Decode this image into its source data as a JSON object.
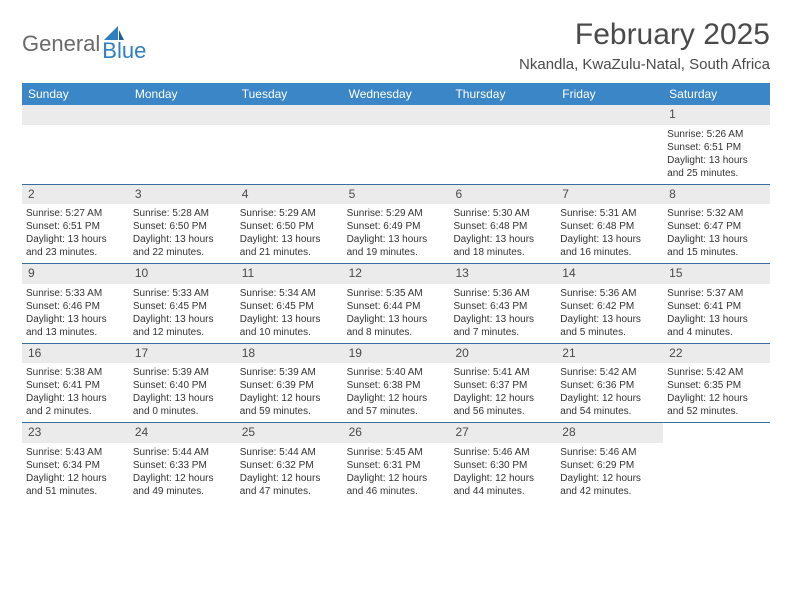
{
  "logo": {
    "word1": "General",
    "word2": "Blue"
  },
  "title": "February 2025",
  "location": "Nkandla, KwaZulu-Natal, South Africa",
  "colors": {
    "header_bar": "#3b86c6",
    "week_border": "#3b6ea0",
    "daynum_bg": "#ebebeb",
    "logo_gray": "#6a6a6a",
    "logo_blue": "#2f7fbf",
    "title_color": "#4a4a4a",
    "text": "#333333"
  },
  "dow": [
    "Sunday",
    "Monday",
    "Tuesday",
    "Wednesday",
    "Thursday",
    "Friday",
    "Saturday"
  ],
  "weeks": [
    [
      {
        "n": "",
        "empty": true
      },
      {
        "n": "",
        "empty": true
      },
      {
        "n": "",
        "empty": true
      },
      {
        "n": "",
        "empty": true
      },
      {
        "n": "",
        "empty": true
      },
      {
        "n": "",
        "empty": true
      },
      {
        "n": "1",
        "sr": "Sunrise: 5:26 AM",
        "ss": "Sunset: 6:51 PM",
        "dl1": "Daylight: 13 hours",
        "dl2": "and 25 minutes."
      }
    ],
    [
      {
        "n": "2",
        "sr": "Sunrise: 5:27 AM",
        "ss": "Sunset: 6:51 PM",
        "dl1": "Daylight: 13 hours",
        "dl2": "and 23 minutes."
      },
      {
        "n": "3",
        "sr": "Sunrise: 5:28 AM",
        "ss": "Sunset: 6:50 PM",
        "dl1": "Daylight: 13 hours",
        "dl2": "and 22 minutes."
      },
      {
        "n": "4",
        "sr": "Sunrise: 5:29 AM",
        "ss": "Sunset: 6:50 PM",
        "dl1": "Daylight: 13 hours",
        "dl2": "and 21 minutes."
      },
      {
        "n": "5",
        "sr": "Sunrise: 5:29 AM",
        "ss": "Sunset: 6:49 PM",
        "dl1": "Daylight: 13 hours",
        "dl2": "and 19 minutes."
      },
      {
        "n": "6",
        "sr": "Sunrise: 5:30 AM",
        "ss": "Sunset: 6:48 PM",
        "dl1": "Daylight: 13 hours",
        "dl2": "and 18 minutes."
      },
      {
        "n": "7",
        "sr": "Sunrise: 5:31 AM",
        "ss": "Sunset: 6:48 PM",
        "dl1": "Daylight: 13 hours",
        "dl2": "and 16 minutes."
      },
      {
        "n": "8",
        "sr": "Sunrise: 5:32 AM",
        "ss": "Sunset: 6:47 PM",
        "dl1": "Daylight: 13 hours",
        "dl2": "and 15 minutes."
      }
    ],
    [
      {
        "n": "9",
        "sr": "Sunrise: 5:33 AM",
        "ss": "Sunset: 6:46 PM",
        "dl1": "Daylight: 13 hours",
        "dl2": "and 13 minutes."
      },
      {
        "n": "10",
        "sr": "Sunrise: 5:33 AM",
        "ss": "Sunset: 6:45 PM",
        "dl1": "Daylight: 13 hours",
        "dl2": "and 12 minutes."
      },
      {
        "n": "11",
        "sr": "Sunrise: 5:34 AM",
        "ss": "Sunset: 6:45 PM",
        "dl1": "Daylight: 13 hours",
        "dl2": "and 10 minutes."
      },
      {
        "n": "12",
        "sr": "Sunrise: 5:35 AM",
        "ss": "Sunset: 6:44 PM",
        "dl1": "Daylight: 13 hours",
        "dl2": "and 8 minutes."
      },
      {
        "n": "13",
        "sr": "Sunrise: 5:36 AM",
        "ss": "Sunset: 6:43 PM",
        "dl1": "Daylight: 13 hours",
        "dl2": "and 7 minutes."
      },
      {
        "n": "14",
        "sr": "Sunrise: 5:36 AM",
        "ss": "Sunset: 6:42 PM",
        "dl1": "Daylight: 13 hours",
        "dl2": "and 5 minutes."
      },
      {
        "n": "15",
        "sr": "Sunrise: 5:37 AM",
        "ss": "Sunset: 6:41 PM",
        "dl1": "Daylight: 13 hours",
        "dl2": "and 4 minutes."
      }
    ],
    [
      {
        "n": "16",
        "sr": "Sunrise: 5:38 AM",
        "ss": "Sunset: 6:41 PM",
        "dl1": "Daylight: 13 hours",
        "dl2": "and 2 minutes."
      },
      {
        "n": "17",
        "sr": "Sunrise: 5:39 AM",
        "ss": "Sunset: 6:40 PM",
        "dl1": "Daylight: 13 hours",
        "dl2": "and 0 minutes."
      },
      {
        "n": "18",
        "sr": "Sunrise: 5:39 AM",
        "ss": "Sunset: 6:39 PM",
        "dl1": "Daylight: 12 hours",
        "dl2": "and 59 minutes."
      },
      {
        "n": "19",
        "sr": "Sunrise: 5:40 AM",
        "ss": "Sunset: 6:38 PM",
        "dl1": "Daylight: 12 hours",
        "dl2": "and 57 minutes."
      },
      {
        "n": "20",
        "sr": "Sunrise: 5:41 AM",
        "ss": "Sunset: 6:37 PM",
        "dl1": "Daylight: 12 hours",
        "dl2": "and 56 minutes."
      },
      {
        "n": "21",
        "sr": "Sunrise: 5:42 AM",
        "ss": "Sunset: 6:36 PM",
        "dl1": "Daylight: 12 hours",
        "dl2": "and 54 minutes."
      },
      {
        "n": "22",
        "sr": "Sunrise: 5:42 AM",
        "ss": "Sunset: 6:35 PM",
        "dl1": "Daylight: 12 hours",
        "dl2": "and 52 minutes."
      }
    ],
    [
      {
        "n": "23",
        "sr": "Sunrise: 5:43 AM",
        "ss": "Sunset: 6:34 PM",
        "dl1": "Daylight: 12 hours",
        "dl2": "and 51 minutes."
      },
      {
        "n": "24",
        "sr": "Sunrise: 5:44 AM",
        "ss": "Sunset: 6:33 PM",
        "dl1": "Daylight: 12 hours",
        "dl2": "and 49 minutes."
      },
      {
        "n": "25",
        "sr": "Sunrise: 5:44 AM",
        "ss": "Sunset: 6:32 PM",
        "dl1": "Daylight: 12 hours",
        "dl2": "and 47 minutes."
      },
      {
        "n": "26",
        "sr": "Sunrise: 5:45 AM",
        "ss": "Sunset: 6:31 PM",
        "dl1": "Daylight: 12 hours",
        "dl2": "and 46 minutes."
      },
      {
        "n": "27",
        "sr": "Sunrise: 5:46 AM",
        "ss": "Sunset: 6:30 PM",
        "dl1": "Daylight: 12 hours",
        "dl2": "and 44 minutes."
      },
      {
        "n": "28",
        "sr": "Sunrise: 5:46 AM",
        "ss": "Sunset: 6:29 PM",
        "dl1": "Daylight: 12 hours",
        "dl2": "and 42 minutes."
      },
      {
        "n": "",
        "empty": true,
        "noBar": true
      }
    ]
  ]
}
